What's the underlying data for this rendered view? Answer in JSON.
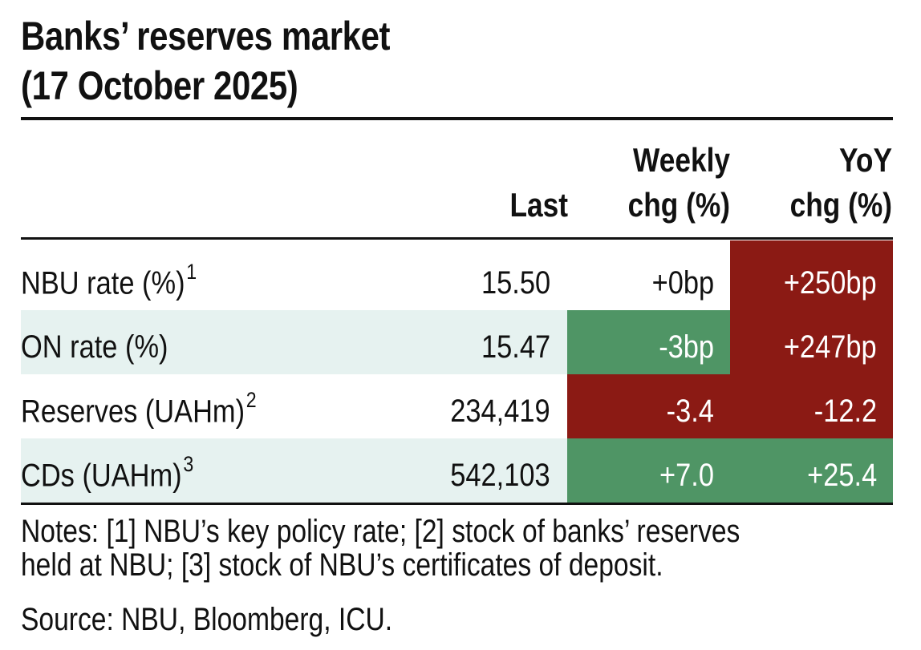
{
  "title": {
    "line1": "Banks’ reserves market",
    "line2": "(17 October 2025)"
  },
  "columns": {
    "last": "Last",
    "weekly_line1": "Weekly",
    "weekly_line2": "chg (%)",
    "yoy_line1": "YoY",
    "yoy_line2": "chg (%)"
  },
  "rows": [
    {
      "label": "NBU rate (%)",
      "note": "1",
      "last": "15.50",
      "weekly": "+0bp",
      "yoy": "+250bp"
    },
    {
      "label": "ON rate (%)",
      "note": "",
      "last": "15.47",
      "weekly": "-3bp",
      "yoy": "+247bp"
    },
    {
      "label": "Reserves (UAHm)",
      "note": "2",
      "last": "234,419",
      "weekly": "-3.4",
      "yoy": "-12.2"
    },
    {
      "label": "CDs (UAHm)",
      "note": "3",
      "last": "542,103",
      "weekly": "+7.0",
      "yoy": "+25.4"
    }
  ],
  "cell_colors": {
    "negative": "#8b1a14",
    "positive": "#4f9565",
    "row_shade": "#e6f2f0"
  },
  "notes": {
    "line1": "Notes: [1] NBU’s key policy rate; [2] stock of banks’ reserves",
    "line2": "held at NBU; [3] stock of NBU’s certificates of deposit."
  },
  "source": "Source: NBU, Bloomberg, ICU."
}
